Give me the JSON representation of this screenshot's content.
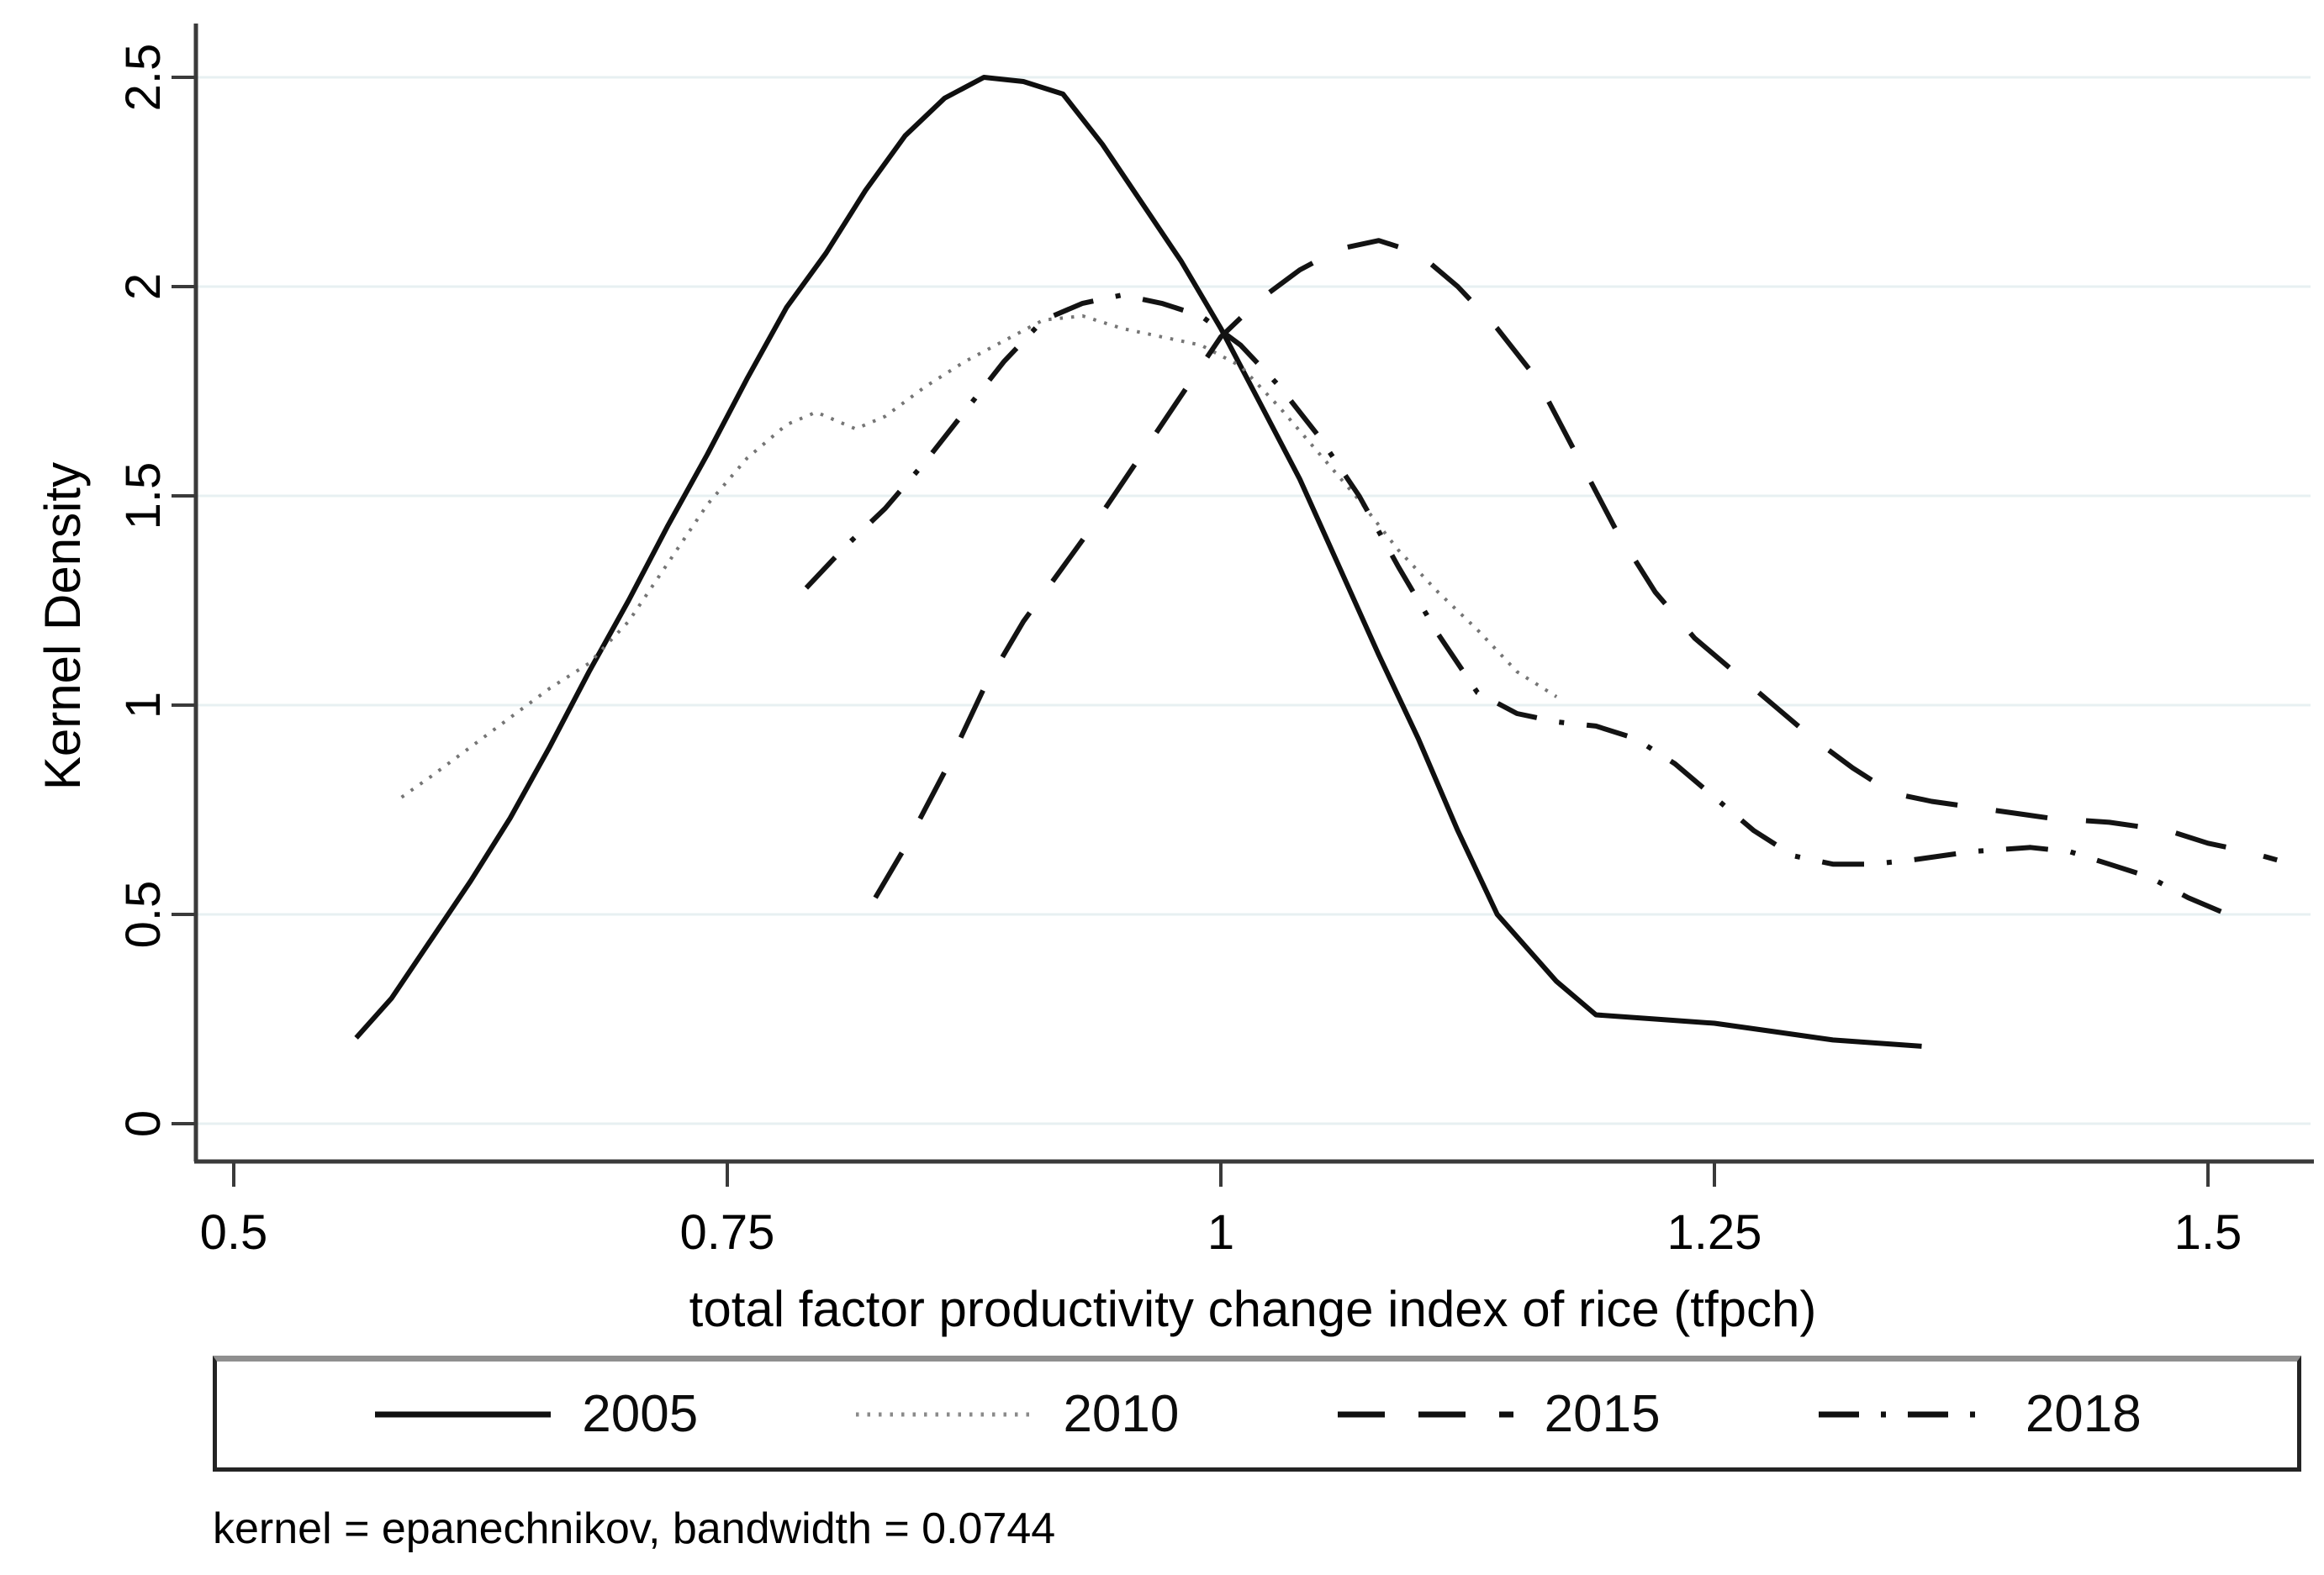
{
  "figure": {
    "note": "kernel = epanechnikov, bandwidth = 0.0744",
    "background_color": "#ffffff",
    "grid_color": "#e7f0f2",
    "axis_color": "#3a3a3a",
    "text_color": "#000000"
  },
  "axes": {
    "y_label": "Kernel Density",
    "x_label": "total factor productivity change index of rice (tfpch)",
    "y_ticks": [
      0,
      0.5,
      1,
      1.5,
      2,
      2.5
    ],
    "y_tick_labels": [
      "0",
      "0.5",
      "1",
      "1.5",
      "2",
      "2.5"
    ],
    "x_ticks": [
      0.5,
      0.75,
      1,
      1.25,
      1.5
    ],
    "x_tick_labels": [
      "0.5",
      "0.75",
      "1",
      "1.25",
      "1.5"
    ]
  },
  "chart_data": {
    "type": "line",
    "title": "",
    "xlabel": "total factor productivity change index of rice (tfpch)",
    "ylabel": "Kernel Density",
    "xlim": [
      0.481,
      1.553
    ],
    "ylim": [
      0,
      2.65
    ],
    "grid": "horizontal-only",
    "legend_position": "bottom-box",
    "note": "kernel = epanechnikov, bandwidth = 0.0744",
    "series": [
      {
        "name": "2005",
        "dash": "solid",
        "color": "#0f0f0f",
        "width": 6,
        "points": [
          [
            0.562,
            0.205
          ],
          [
            0.58,
            0.3
          ],
          [
            0.6,
            0.44
          ],
          [
            0.62,
            0.58
          ],
          [
            0.64,
            0.73
          ],
          [
            0.66,
            0.9
          ],
          [
            0.68,
            1.08
          ],
          [
            0.7,
            1.25
          ],
          [
            0.72,
            1.43
          ],
          [
            0.74,
            1.6
          ],
          [
            0.76,
            1.78
          ],
          [
            0.78,
            1.95
          ],
          [
            0.8,
            2.08
          ],
          [
            0.82,
            2.23
          ],
          [
            0.84,
            2.36
          ],
          [
            0.86,
            2.45
          ],
          [
            0.88,
            2.5
          ],
          [
            0.9,
            2.49
          ],
          [
            0.92,
            2.46
          ],
          [
            0.94,
            2.34
          ],
          [
            0.96,
            2.2
          ],
          [
            0.98,
            2.06
          ],
          [
            1.0,
            1.9
          ],
          [
            1.02,
            1.72
          ],
          [
            1.04,
            1.54
          ],
          [
            1.06,
            1.33
          ],
          [
            1.08,
            1.12
          ],
          [
            1.1,
            0.92
          ],
          [
            1.12,
            0.7
          ],
          [
            1.14,
            0.5
          ],
          [
            1.17,
            0.34
          ],
          [
            1.19,
            0.26
          ],
          [
            1.22,
            0.25
          ],
          [
            1.25,
            0.24
          ],
          [
            1.28,
            0.22
          ],
          [
            1.31,
            0.2
          ],
          [
            1.34,
            0.19
          ],
          [
            1.355,
            0.185
          ]
        ]
      },
      {
        "name": "2010",
        "dash": "dot",
        "color": "#757575",
        "width": 4,
        "points": [
          [
            0.585,
            0.78
          ],
          [
            0.6,
            0.83
          ],
          [
            0.62,
            0.9
          ],
          [
            0.64,
            0.97
          ],
          [
            0.66,
            1.04
          ],
          [
            0.68,
            1.1
          ],
          [
            0.7,
            1.2
          ],
          [
            0.72,
            1.34
          ],
          [
            0.74,
            1.48
          ],
          [
            0.76,
            1.59
          ],
          [
            0.78,
            1.67
          ],
          [
            0.795,
            1.7
          ],
          [
            0.815,
            1.66
          ],
          [
            0.83,
            1.69
          ],
          [
            0.85,
            1.76
          ],
          [
            0.87,
            1.82
          ],
          [
            0.89,
            1.87
          ],
          [
            0.91,
            1.92
          ],
          [
            0.93,
            1.93
          ],
          [
            0.95,
            1.9
          ],
          [
            0.97,
            1.88
          ],
          [
            0.99,
            1.86
          ],
          [
            1.01,
            1.81
          ],
          [
            1.03,
            1.71
          ],
          [
            1.05,
            1.6
          ],
          [
            1.07,
            1.49
          ],
          [
            1.09,
            1.37
          ],
          [
            1.11,
            1.27
          ],
          [
            1.13,
            1.18
          ],
          [
            1.15,
            1.08
          ],
          [
            1.17,
            1.02
          ]
        ]
      },
      {
        "name": "2015",
        "dash": "longdash",
        "color": "#131313",
        "width": 6,
        "points": [
          [
            0.825,
            0.54
          ],
          [
            0.84,
            0.66
          ],
          [
            0.86,
            0.84
          ],
          [
            0.88,
            1.04
          ],
          [
            0.9,
            1.2
          ],
          [
            0.92,
            1.33
          ],
          [
            0.94,
            1.46
          ],
          [
            0.96,
            1.6
          ],
          [
            0.98,
            1.74
          ],
          [
            1.0,
            1.88
          ],
          [
            1.02,
            1.97
          ],
          [
            1.04,
            2.04
          ],
          [
            1.06,
            2.09
          ],
          [
            1.08,
            2.11
          ],
          [
            1.1,
            2.08
          ],
          [
            1.12,
            2.0
          ],
          [
            1.14,
            1.9
          ],
          [
            1.16,
            1.78
          ],
          [
            1.18,
            1.6
          ],
          [
            1.2,
            1.42
          ],
          [
            1.22,
            1.27
          ],
          [
            1.24,
            1.16
          ],
          [
            1.26,
            1.08
          ],
          [
            1.28,
            1.0
          ],
          [
            1.3,
            0.92
          ],
          [
            1.32,
            0.85
          ],
          [
            1.34,
            0.79
          ],
          [
            1.36,
            0.77
          ],
          [
            1.39,
            0.75
          ],
          [
            1.42,
            0.73
          ],
          [
            1.45,
            0.72
          ],
          [
            1.48,
            0.7
          ],
          [
            1.5,
            0.67
          ],
          [
            1.52,
            0.65
          ],
          [
            1.535,
            0.63
          ]
        ]
      },
      {
        "name": "2018",
        "dash": "dashdot",
        "color": "#131313",
        "width": 6,
        "points": [
          [
            0.79,
            1.28
          ],
          [
            0.81,
            1.38
          ],
          [
            0.83,
            1.47
          ],
          [
            0.85,
            1.58
          ],
          [
            0.87,
            1.7
          ],
          [
            0.89,
            1.82
          ],
          [
            0.91,
            1.92
          ],
          [
            0.93,
            1.96
          ],
          [
            0.95,
            1.98
          ],
          [
            0.97,
            1.96
          ],
          [
            0.99,
            1.93
          ],
          [
            1.01,
            1.86
          ],
          [
            1.03,
            1.76
          ],
          [
            1.05,
            1.64
          ],
          [
            1.07,
            1.5
          ],
          [
            1.09,
            1.33
          ],
          [
            1.11,
            1.17
          ],
          [
            1.13,
            1.03
          ],
          [
            1.15,
            0.98
          ],
          [
            1.17,
            0.96
          ],
          [
            1.19,
            0.95
          ],
          [
            1.21,
            0.92
          ],
          [
            1.23,
            0.86
          ],
          [
            1.25,
            0.78
          ],
          [
            1.27,
            0.7
          ],
          [
            1.29,
            0.64
          ],
          [
            1.31,
            0.62
          ],
          [
            1.33,
            0.62
          ],
          [
            1.35,
            0.63
          ],
          [
            1.38,
            0.65
          ],
          [
            1.41,
            0.66
          ],
          [
            1.43,
            0.65
          ],
          [
            1.45,
            0.62
          ],
          [
            1.47,
            0.59
          ],
          [
            1.49,
            0.54
          ],
          [
            1.51,
            0.5
          ]
        ]
      }
    ]
  },
  "legend": {
    "entries": [
      "2005",
      "2010",
      "2015",
      "2018"
    ]
  }
}
